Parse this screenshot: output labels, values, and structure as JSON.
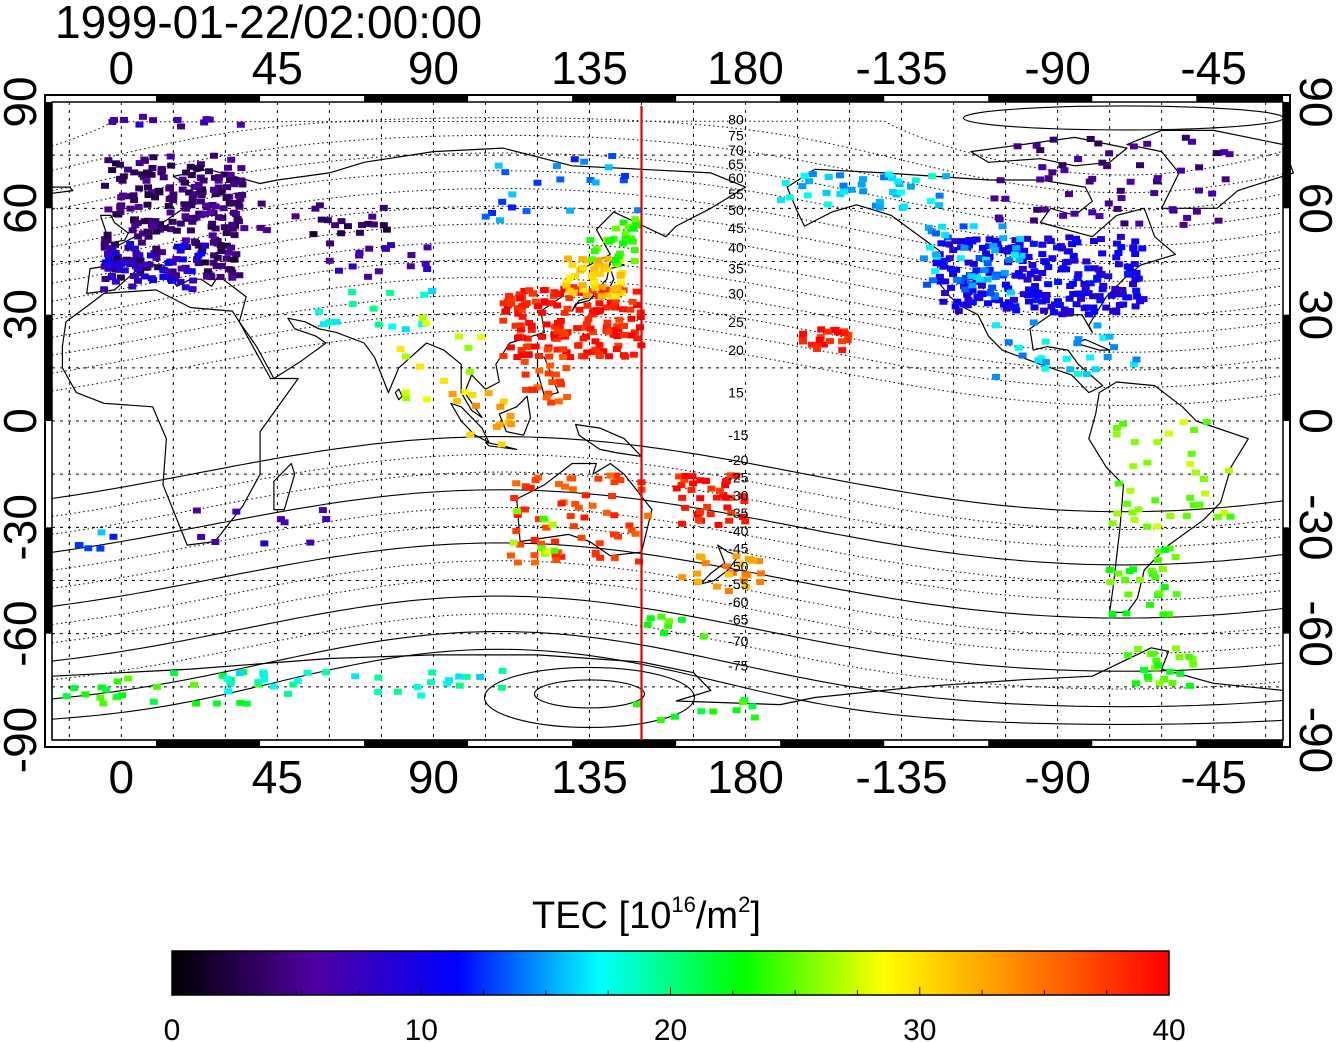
{
  "title": "1999-01-22/02:00:00",
  "chart_data": {
    "type": "heatmap",
    "title": "1999-01-22/02:00:00",
    "x_axis_top": {
      "ticks": [
        "0",
        "45",
        "90",
        "135",
        "180",
        "-135",
        "-90",
        "-45"
      ]
    },
    "x_axis_bottom": {
      "ticks": [
        "0",
        "45",
        "90",
        "135",
        "180",
        "-135",
        "-90",
        "-45"
      ]
    },
    "y_axis_left": {
      "ticks": [
        "90",
        "60",
        "30",
        "0",
        "-30",
        "-60",
        "-90"
      ]
    },
    "y_axis_right": {
      "ticks": [
        "90",
        "60",
        "30",
        "0",
        "-30",
        "-60",
        "-90"
      ]
    },
    "xlim_east_longitude": [
      -20,
      335
    ],
    "ylim": [
      -90,
      90
    ],
    "grid": true,
    "marker_longitude": 150,
    "marker_color": "#e00000",
    "magnetic_latitude_labels": [
      {
        "text": "80",
        "lat": 85
      },
      {
        "text": "75",
        "lat": 80.5
      },
      {
        "text": "70",
        "lat": 76.5
      },
      {
        "text": "65",
        "lat": 72.5
      },
      {
        "text": "60",
        "lat": 68.5
      },
      {
        "text": "55",
        "lat": 64
      },
      {
        "text": "50",
        "lat": 59.5
      },
      {
        "text": "45",
        "lat": 54.5
      },
      {
        "text": "40",
        "lat": 49
      },
      {
        "text": "35",
        "lat": 43
      },
      {
        "text": "30",
        "lat": 36
      },
      {
        "text": "25",
        "lat": 28
      },
      {
        "text": "20",
        "lat": 20
      },
      {
        "text": "15",
        "lat": 8
      },
      {
        "text": "-15",
        "lat": -4
      },
      {
        "text": "-20",
        "lat": -11
      },
      {
        "text": "-25",
        "lat": -16
      },
      {
        "text": "-30",
        "lat": -21
      },
      {
        "text": "-35",
        "lat": -26
      },
      {
        "text": "-40",
        "lat": -31
      },
      {
        "text": "-45",
        "lat": -36
      },
      {
        "text": "-50",
        "lat": -41
      },
      {
        "text": "-55",
        "lat": -46
      },
      {
        "text": "-60",
        "lat": -51
      },
      {
        "text": "-65",
        "lat": -56
      },
      {
        "text": "-70",
        "lat": -62
      },
      {
        "text": "-75",
        "lat": -69
      }
    ],
    "tec_regions": [
      {
        "lon": [
          -5,
          35
        ],
        "lat": [
          40,
          75
        ],
        "tec": 4,
        "n": 260
      },
      {
        "lon": [
          -5,
          25
        ],
        "lat": [
          37,
          50
        ],
        "tec": 9,
        "n": 50
      },
      {
        "lon": [
          -10,
          10
        ],
        "lat": [
          83,
          86
        ],
        "tec": 7,
        "n": 6
      },
      {
        "lon": [
          15,
          35
        ],
        "lat": [
          83,
          86
        ],
        "tec": 6,
        "n": 6
      },
      {
        "lon": [
          30,
          80
        ],
        "lat": [
          50,
          62
        ],
        "tec": 4,
        "n": 25
      },
      {
        "lon": [
          60,
          90
        ],
        "lat": [
          40,
          50
        ],
        "tec": 7,
        "n": 16
      },
      {
        "lon": [
          55,
          95
        ],
        "lat": [
          20,
          38
        ],
        "tec": 18,
        "n": 14
      },
      {
        "lon": [
          80,
          105
        ],
        "lat": [
          5,
          30
        ],
        "tec": 28,
        "n": 14
      },
      {
        "lon": [
          110,
          150
        ],
        "lat": [
          18,
          38
        ],
        "tec": 39,
        "n": 170
      },
      {
        "lon": [
          128,
          145
        ],
        "lat": [
          35,
          46
        ],
        "tec": 31,
        "n": 45
      },
      {
        "lon": [
          135,
          150
        ],
        "lat": [
          44,
          58
        ],
        "tec": 24,
        "n": 28
      },
      {
        "lon": [
          105,
          150
        ],
        "lat": [
          55,
          75
        ],
        "tec": 14,
        "n": 22
      },
      {
        "lon": [
          115,
          130
        ],
        "lat": [
          5,
          20
        ],
        "tec": 37,
        "n": 20
      },
      {
        "lon": [
          95,
          115
        ],
        "lat": [
          -8,
          8
        ],
        "tec": 32,
        "n": 14
      },
      {
        "lon": [
          112,
          152
        ],
        "lat": [
          -40,
          -15
        ],
        "tec": 37,
        "n": 60
      },
      {
        "lon": [
          112,
          125
        ],
        "lat": [
          -38,
          -25
        ],
        "tec": 26,
        "n": 10
      },
      {
        "lon": [
          160,
          180
        ],
        "lat": [
          -30,
          -15
        ],
        "tec": 39,
        "n": 40
      },
      {
        "lon": [
          160,
          185
        ],
        "lat": [
          -48,
          -38
        ],
        "tec": 33,
        "n": 24
      },
      {
        "lon": [
          150,
          170
        ],
        "lat": [
          -62,
          -55
        ],
        "tec": 24,
        "n": 8
      },
      {
        "lon": [
          145,
          185
        ],
        "lat": [
          -85,
          -78
        ],
        "tec": 23,
        "n": 10
      },
      {
        "lon": [
          195,
          210
        ],
        "lat": [
          19,
          26
        ],
        "tec": 39,
        "n": 22
      },
      {
        "lon": [
          190,
          240
        ],
        "lat": [
          60,
          70
        ],
        "tec": 16,
        "n": 40
      },
      {
        "lon": [
          235,
          295
        ],
        "lat": [
          30,
          52
        ],
        "tec": 10,
        "n": 230
      },
      {
        "lon": [
          230,
          260
        ],
        "lat": [
          35,
          55
        ],
        "tec": 15,
        "n": 50
      },
      {
        "lon": [
          250,
          320
        ],
        "lat": [
          55,
          80
        ],
        "tec": 5,
        "n": 60
      },
      {
        "lon": [
          250,
          295
        ],
        "lat": [
          10,
          30
        ],
        "tec": 16,
        "n": 26
      },
      {
        "lon": [
          285,
          320
        ],
        "lat": [
          -30,
          0
        ],
        "tec": 26,
        "n": 36
      },
      {
        "lon": [
          285,
          305
        ],
        "lat": [
          -55,
          -35
        ],
        "tec": 24,
        "n": 26
      },
      {
        "lon": [
          290,
          310
        ],
        "lat": [
          -75,
          -62
        ],
        "tec": 24,
        "n": 22
      },
      {
        "lon": [
          -20,
          40
        ],
        "lat": [
          -80,
          -70
        ],
        "tec": 23,
        "n": 24
      },
      {
        "lon": [
          30,
          110
        ],
        "lat": [
          -78,
          -70
        ],
        "tec": 18,
        "n": 30
      },
      {
        "lon": [
          20,
          60
        ],
        "lat": [
          -35,
          -25
        ],
        "tec": 7,
        "n": 10
      },
      {
        "lon": [
          -20,
          0
        ],
        "lat": [
          -38,
          -30
        ],
        "tec": 14,
        "n": 6
      }
    ],
    "colorbar": {
      "title": "TEC  [10",
      "title_sup": "16",
      "title_mid": "/m",
      "title_sup2": "2",
      "title_end": "]",
      "ticks": [
        "0",
        "10",
        "20",
        "30",
        "40"
      ],
      "range": [
        0,
        40
      ],
      "colors": [
        "#000000",
        "#5000a0",
        "#0000ff",
        "#00ffff",
        "#00ff00",
        "#ffff00",
        "#ff8000",
        "#ff0000"
      ]
    }
  }
}
